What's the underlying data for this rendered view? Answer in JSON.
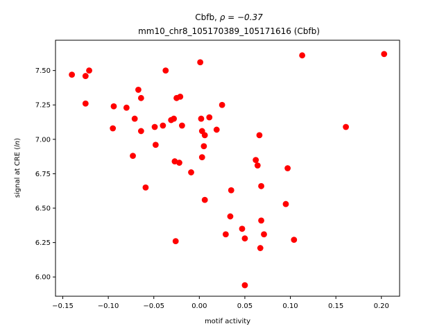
{
  "chart_data": {
    "type": "scatter",
    "title_line1": "Cbfb, ",
    "title_rho": "ρ = −0.37",
    "title_line2": "mm10_chr8_105170389_105171616 (Cbfb)",
    "xlabel": "motif activity",
    "ylabel_prefix": "signal at CRE (",
    "ylabel_ln": "ln",
    "ylabel_suffix": ")",
    "xlim": [
      -0.158,
      0.22
    ],
    "ylim": [
      5.86,
      7.72
    ],
    "xticks": [
      {
        "value": -0.15,
        "label": "−0.15"
      },
      {
        "value": -0.1,
        "label": "−0.10"
      },
      {
        "value": -0.05,
        "label": "−0.05"
      },
      {
        "value": 0.0,
        "label": "0.00"
      },
      {
        "value": 0.05,
        "label": "0.05"
      },
      {
        "value": 0.1,
        "label": "0.10"
      },
      {
        "value": 0.15,
        "label": "0.15"
      },
      {
        "value": 0.2,
        "label": "0.20"
      }
    ],
    "yticks": [
      {
        "value": 6.0,
        "label": "6.00"
      },
      {
        "value": 6.25,
        "label": "6.25"
      },
      {
        "value": 6.5,
        "label": "6.50"
      },
      {
        "value": 6.75,
        "label": "6.75"
      },
      {
        "value": 7.0,
        "label": "7.00"
      },
      {
        "value": 7.25,
        "label": "7.25"
      },
      {
        "value": 7.5,
        "label": "7.50"
      }
    ],
    "marker_color": "#ff0000",
    "grid": false,
    "points": [
      {
        "x": -0.14,
        "y": 7.47
      },
      {
        "x": -0.125,
        "y": 7.46
      },
      {
        "x": -0.121,
        "y": 7.5
      },
      {
        "x": -0.125,
        "y": 7.26
      },
      {
        "x": -0.094,
        "y": 7.24
      },
      {
        "x": -0.08,
        "y": 7.23
      },
      {
        "x": -0.095,
        "y": 7.08
      },
      {
        "x": -0.067,
        "y": 7.36
      },
      {
        "x": -0.064,
        "y": 7.3
      },
      {
        "x": -0.071,
        "y": 7.15
      },
      {
        "x": -0.064,
        "y": 7.06
      },
      {
        "x": -0.073,
        "y": 6.88
      },
      {
        "x": -0.059,
        "y": 6.65
      },
      {
        "x": -0.049,
        "y": 7.09
      },
      {
        "x": -0.048,
        "y": 6.96
      },
      {
        "x": -0.037,
        "y": 7.5
      },
      {
        "x": -0.04,
        "y": 7.1
      },
      {
        "x": -0.031,
        "y": 7.14
      },
      {
        "x": -0.028,
        "y": 7.15
      },
      {
        "x": -0.025,
        "y": 7.3
      },
      {
        "x": -0.021,
        "y": 7.31
      },
      {
        "x": -0.019,
        "y": 7.1
      },
      {
        "x": -0.027,
        "y": 6.84
      },
      {
        "x": -0.022,
        "y": 6.83
      },
      {
        "x": -0.009,
        "y": 6.76
      },
      {
        "x": -0.026,
        "y": 6.26
      },
      {
        "x": 0.001,
        "y": 7.56
      },
      {
        "x": 0.002,
        "y": 7.15
      },
      {
        "x": 0.011,
        "y": 7.16
      },
      {
        "x": 0.003,
        "y": 7.06
      },
      {
        "x": 0.006,
        "y": 7.03
      },
      {
        "x": 0.005,
        "y": 6.95
      },
      {
        "x": 0.003,
        "y": 6.87
      },
      {
        "x": 0.025,
        "y": 7.25
      },
      {
        "x": 0.019,
        "y": 7.07
      },
      {
        "x": 0.006,
        "y": 6.56
      },
      {
        "x": 0.035,
        "y": 6.63
      },
      {
        "x": 0.034,
        "y": 6.44
      },
      {
        "x": 0.047,
        "y": 6.35
      },
      {
        "x": 0.029,
        "y": 6.31
      },
      {
        "x": 0.05,
        "y": 6.28
      },
      {
        "x": 0.05,
        "y": 5.94
      },
      {
        "x": 0.066,
        "y": 7.03
      },
      {
        "x": 0.062,
        "y": 6.85
      },
      {
        "x": 0.064,
        "y": 6.81
      },
      {
        "x": 0.068,
        "y": 6.66
      },
      {
        "x": 0.068,
        "y": 6.41
      },
      {
        "x": 0.071,
        "y": 6.31
      },
      {
        "x": 0.067,
        "y": 6.21
      },
      {
        "x": 0.097,
        "y": 6.79
      },
      {
        "x": 0.095,
        "y": 6.53
      },
      {
        "x": 0.104,
        "y": 6.27
      },
      {
        "x": 0.113,
        "y": 7.61
      },
      {
        "x": 0.161,
        "y": 7.09
      },
      {
        "x": 0.203,
        "y": 7.62
      }
    ]
  }
}
